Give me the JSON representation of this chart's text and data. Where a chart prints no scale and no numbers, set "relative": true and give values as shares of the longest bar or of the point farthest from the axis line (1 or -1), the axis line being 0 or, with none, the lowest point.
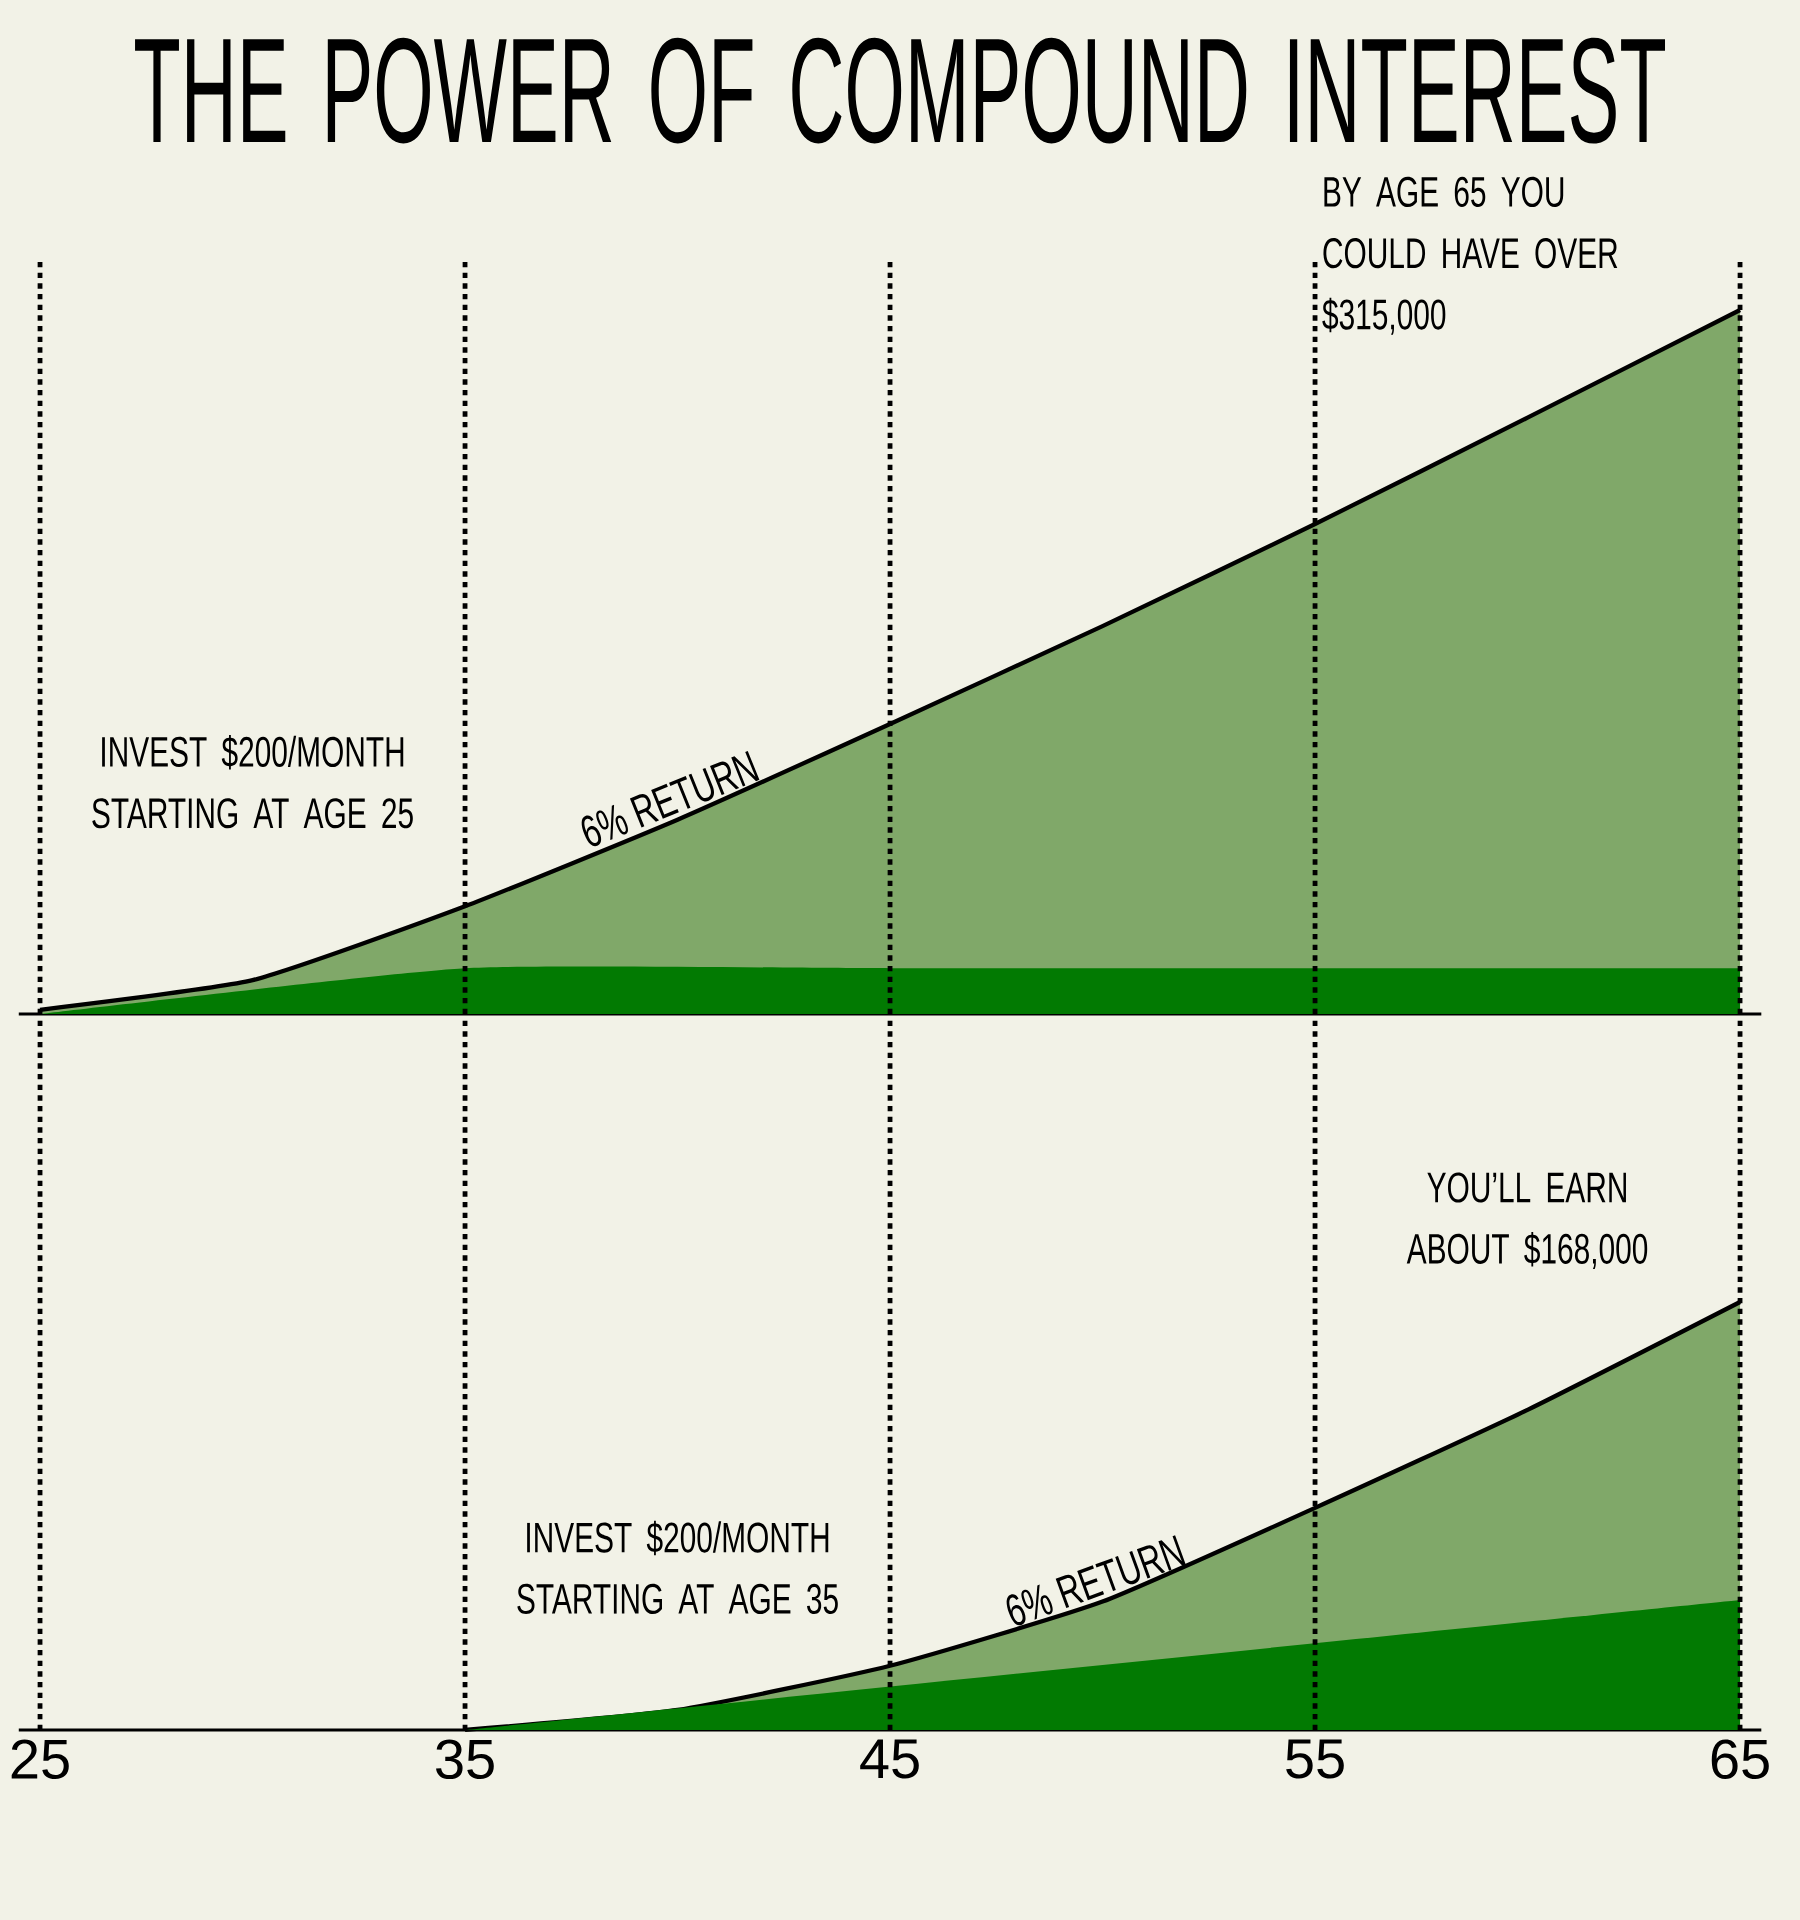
{
  "chart_data": [
    {
      "type": "area",
      "title": "THE POWER OF COMPOUND INTEREST",
      "relative": true,
      "xlim": [
        24.5,
        65.5
      ],
      "xticks": [
        25,
        35,
        45,
        55,
        65
      ],
      "tick_labels": false,
      "grid": false,
      "series": [
        {
          "color": "#80a869",
          "line_style": "solid",
          "x": [
            25,
            30,
            35,
            40,
            45,
            50,
            55,
            60,
            65
          ],
          "values": [
            0.006,
            0.048,
            0.153,
            0.276,
            0.412,
            0.551,
            0.696,
            0.847,
            1
          ]
        },
        {
          "color": "#027a02",
          "x": [
            25,
            35,
            45,
            55,
            65
          ],
          "values": [
            0,
            0.065,
            0.065,
            0.065,
            0.065
          ]
        }
      ],
      "ref_lines": [
        {
          "axis": "x",
          "value": 25,
          "line_style": "dotted",
          "color": "#000000"
        },
        {
          "axis": "x",
          "value": 35,
          "line_style": "dotted",
          "color": "#000000"
        },
        {
          "axis": "x",
          "value": 45,
          "line_style": "dotted",
          "color": "#000000"
        },
        {
          "axis": "x",
          "value": 55,
          "line_style": "dotted",
          "color": "#000000"
        },
        {
          "axis": "x",
          "value": 65,
          "line_style": "dotted",
          "color": "#000000"
        }
      ],
      "annotations": [
        "INVEST $200/MONTH STARTING AT AGE 25",
        {
          "text": "6% RETURN",
          "x": 40,
          "y": 0.276
        },
        "BY AGE 65 YOU COULD HAVE OVER $315,000"
      ]
    },
    {
      "type": "area",
      "relative": true,
      "xlim": [
        24.5,
        65.5
      ],
      "xticks": [
        25,
        35,
        45,
        55,
        65
      ],
      "tick_labels": "x",
      "grid": false,
      "series": [
        {
          "color": "#80a869",
          "line_style": "solid",
          "x": [
            35,
            40,
            45,
            50,
            55,
            60,
            65
          ],
          "values": [
            0,
            0.047,
            0.15,
            0.3,
            0.519,
            0.748,
            1
          ]
        },
        {
          "color": "#027a02",
          "x": [
            35,
            65
          ],
          "values": [
            0,
            0.304
          ]
        }
      ],
      "ref_lines": [
        {
          "axis": "x",
          "value": 25,
          "line_style": "dotted",
          "color": "#000000"
        },
        {
          "axis": "x",
          "value": 35,
          "line_style": "dotted",
          "color": "#000000"
        },
        {
          "axis": "x",
          "value": 45,
          "line_style": "dotted",
          "color": "#000000"
        },
        {
          "axis": "x",
          "value": 55,
          "line_style": "dotted",
          "color": "#000000"
        },
        {
          "axis": "x",
          "value": 65,
          "line_style": "dotted",
          "color": "#000000"
        }
      ],
      "annotations": [
        "YOU’LL EARN ABOUT $168,000",
        "INVEST $200/MONTH STARTING AT AGE 35",
        {
          "text": "6% RETURN",
          "x": 50,
          "y": 0.3
        }
      ]
    }
  ]
}
